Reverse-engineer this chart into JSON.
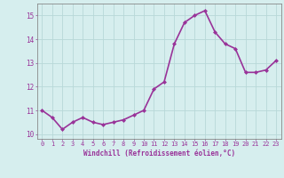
{
  "x": [
    0,
    1,
    2,
    3,
    4,
    5,
    6,
    7,
    8,
    9,
    10,
    11,
    12,
    13,
    14,
    15,
    16,
    17,
    18,
    19,
    20,
    21,
    22,
    23
  ],
  "y": [
    11.0,
    10.7,
    10.2,
    10.5,
    10.7,
    10.5,
    10.4,
    10.5,
    10.6,
    10.8,
    11.0,
    11.9,
    12.2,
    13.8,
    14.7,
    15.0,
    15.2,
    14.3,
    13.8,
    13.6,
    12.6,
    12.6,
    12.7,
    13.1
  ],
  "line_color": "#993399",
  "marker": "D",
  "marker_size": 2.0,
  "xlabel": "Windchill (Refroidissement éolien,°C)",
  "ylabel_ticks": [
    10,
    11,
    12,
    13,
    14,
    15
  ],
  "xtick_labels": [
    "0",
    "1",
    "2",
    "3",
    "4",
    "5",
    "6",
    "7",
    "8",
    "9",
    "10",
    "11",
    "12",
    "13",
    "14",
    "15",
    "16",
    "17",
    "18",
    "19",
    "20",
    "21",
    "22",
    "23"
  ],
  "ylim": [
    9.8,
    15.5
  ],
  "xlim": [
    -0.5,
    23.5
  ],
  "background_color": "#d6eeee",
  "grid_color": "#b8d8d8",
  "tick_color": "#993399",
  "label_color": "#993399",
  "line_width": 1.2,
  "spine_color": "#888888",
  "tick_fontsize": 5.0,
  "xlabel_fontsize": 5.5
}
